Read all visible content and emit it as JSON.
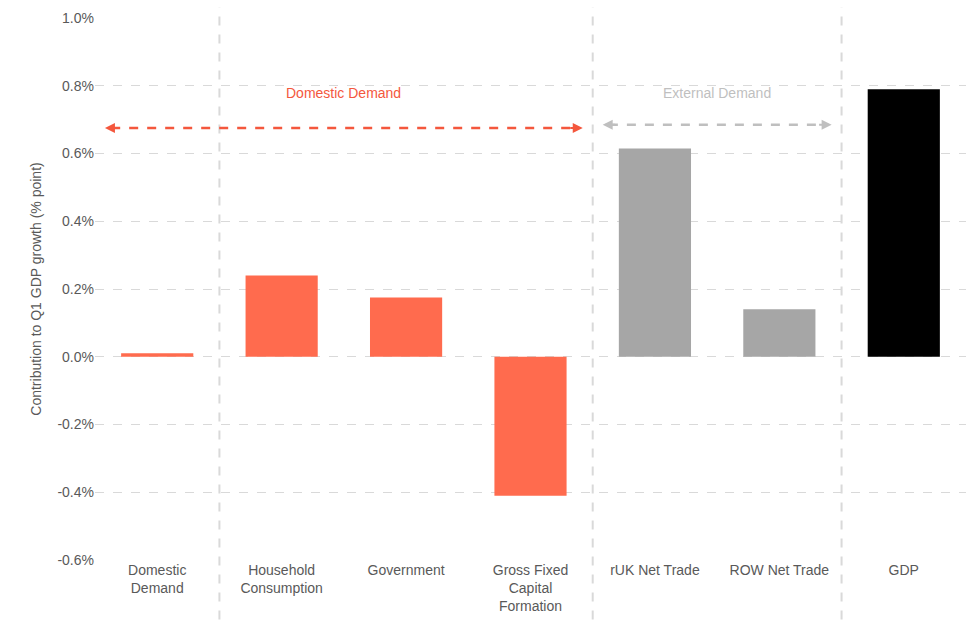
{
  "chart_data": {
    "type": "bar",
    "categories": [
      "Domestic Demand",
      "Household Consumption",
      "Government",
      "Gross Fixed Capital Formation",
      "rUK Net Trade",
      "ROW Net Trade",
      "GDP"
    ],
    "values": [
      0.01,
      0.24,
      0.175,
      -0.41,
      0.615,
      0.14,
      0.79
    ],
    "colors": [
      "#FF6B4E",
      "#FF6B4E",
      "#FF6B4E",
      "#FF6B4E",
      "#A6A6A6",
      "#A6A6A6",
      "#000000"
    ],
    "y_label": "Contribution to Q1 GDP growth (% point)",
    "ylim": [
      -0.6,
      1.0
    ],
    "yticks": [
      {
        "value": -0.6,
        "label": "-0.6%"
      },
      {
        "value": -0.4,
        "label": "-0.4%"
      },
      {
        "value": -0.2,
        "label": "-0.2%"
      },
      {
        "value": 0,
        "label": "0.0%"
      },
      {
        "value": 0.2,
        "label": "0.2%"
      },
      {
        "value": 0.4,
        "label": "0.4%"
      },
      {
        "value": 0.6,
        "label": "0.6%"
      },
      {
        "value": 0.8,
        "label": "0.8%"
      },
      {
        "value": 1.0,
        "label": "1.0%"
      }
    ],
    "annotations": [
      {
        "text": "Domestic Demand",
        "color": "#F4573D"
      },
      {
        "text": "External Demand",
        "color": "#BFBFBF"
      }
    ],
    "grid": true
  }
}
